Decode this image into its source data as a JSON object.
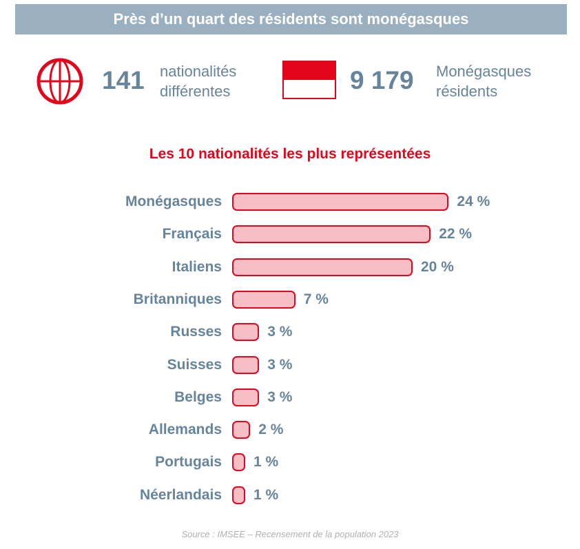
{
  "banner": {
    "title": "Près d’un quart des résidents sont monégasques"
  },
  "stats": [
    {
      "icon": "globe-icon",
      "value": "141",
      "label_line1": "nationalités",
      "label_line2": "différentes"
    },
    {
      "icon": "monaco-flag-icon",
      "value": "9 179",
      "label_line1": "Monégasques",
      "label_line2": "résidents"
    }
  ],
  "colors": {
    "accent": "#e3051b",
    "bar_fill": "#f7bec6",
    "text": "#66849c",
    "banner": "#9aafc0"
  },
  "chart_data": {
    "type": "bar",
    "orientation": "horizontal",
    "title": "Les 10 nationalités les plus représentées",
    "categories": [
      "Monégasques",
      "Français",
      "Italiens",
      "Britanniques",
      "Russes",
      "Suisses",
      "Belges",
      "Allemands",
      "Portugais",
      "Néerlandais"
    ],
    "values": [
      24,
      22,
      20,
      7,
      3,
      3,
      3,
      2,
      1,
      1
    ],
    "value_labels": [
      "24 %",
      "22 %",
      "20 %",
      "7 %",
      "3 %",
      "3 %",
      "3 %",
      "2 %",
      "1 %",
      "1 %"
    ],
    "unit": "%",
    "grid": false
  },
  "source": "Source : IMSEE – Recensement de la population 2023"
}
